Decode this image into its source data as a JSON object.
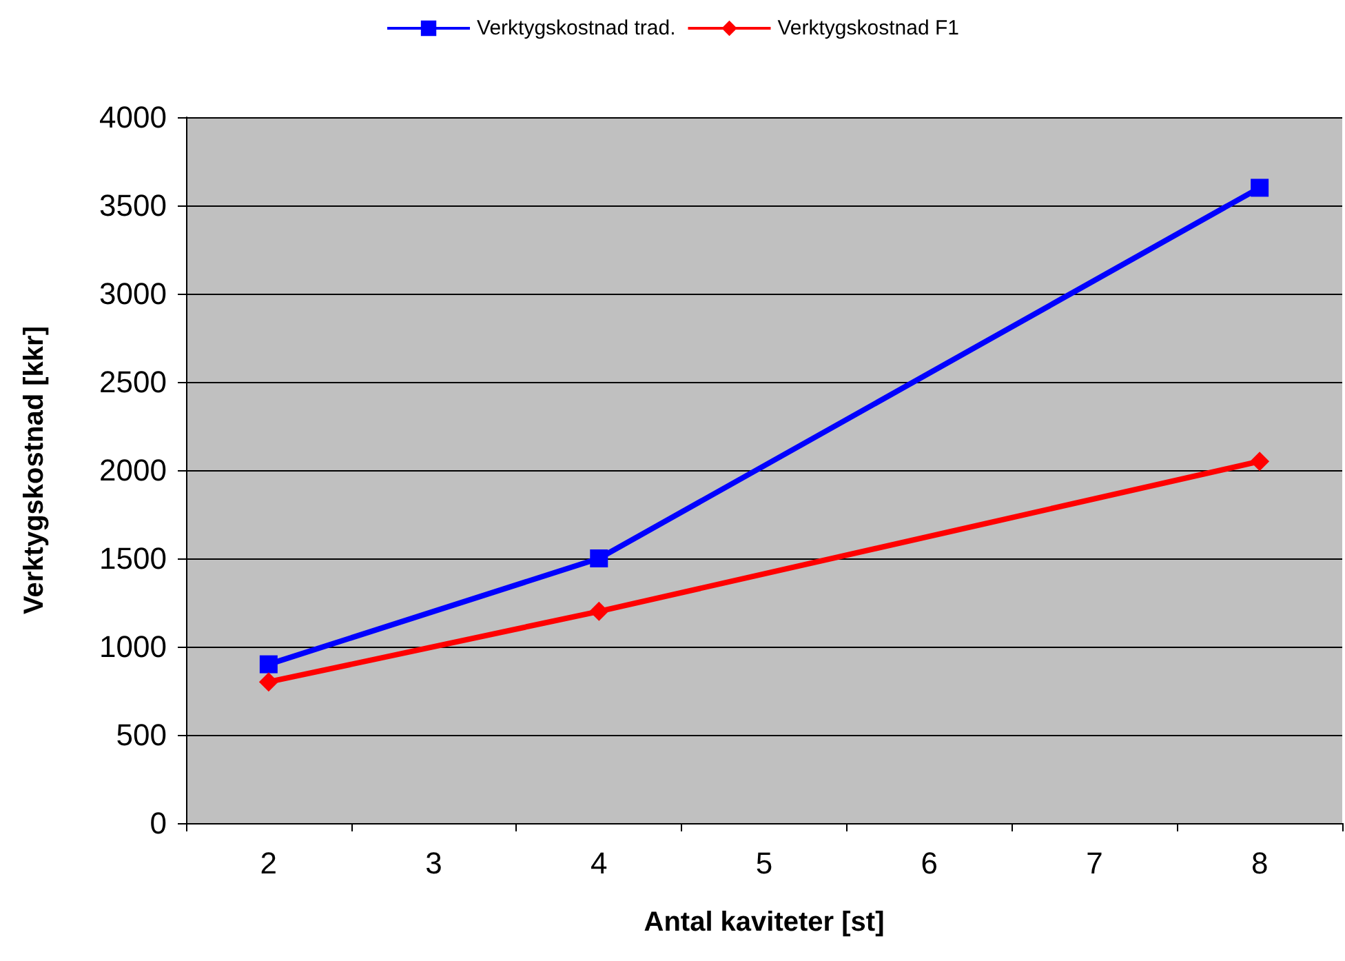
{
  "chart_data": {
    "type": "line",
    "xlabel": "Antal kaviteter [st]",
    "ylabel": "Verktygskostnad [kkr]",
    "categories": [
      "2",
      "3",
      "4",
      "5",
      "6",
      "7",
      "8"
    ],
    "series": [
      {
        "name": "Verktygskostnad trad.",
        "color": "#0000ff",
        "marker": "square",
        "values": [
          900,
          null,
          1500,
          null,
          null,
          null,
          3600
        ]
      },
      {
        "name": "Verktygskostnad F1",
        "color": "#ff0000",
        "marker": "diamond",
        "values": [
          800,
          null,
          1200,
          null,
          null,
          null,
          2050
        ]
      }
    ],
    "ylim": [
      0,
      4000
    ],
    "yticks": [
      0,
      500,
      1000,
      1500,
      2000,
      2500,
      3000,
      3500,
      4000
    ],
    "grid": "y",
    "legend": "top",
    "line_style": "solid"
  }
}
